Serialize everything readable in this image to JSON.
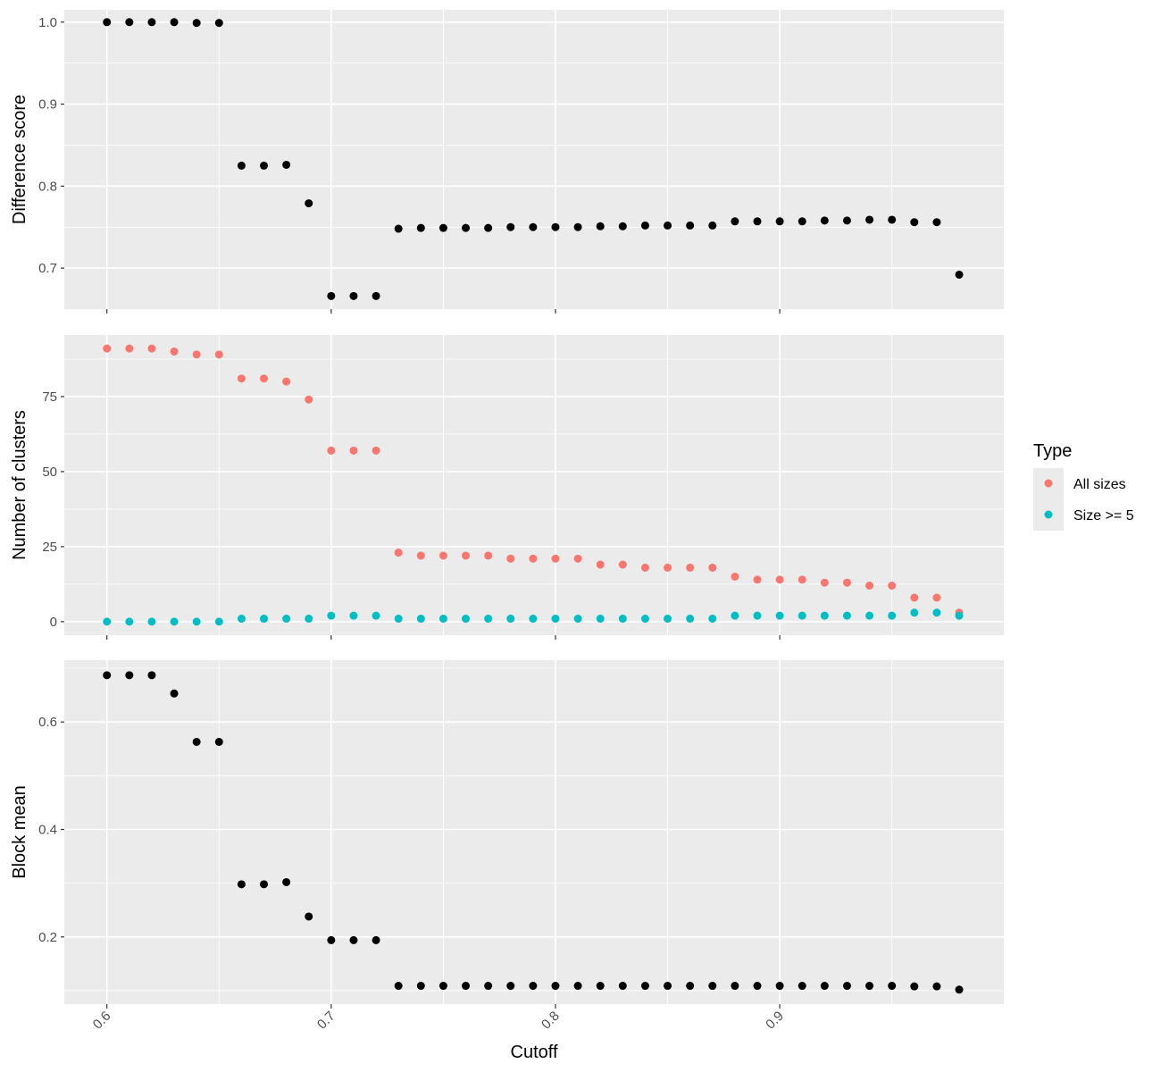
{
  "chart_data": [
    {
      "type": "scatter",
      "ylabel": "Difference score",
      "ylim": [
        0.65,
        1.015
      ],
      "yticks": [
        0.7,
        0.8,
        0.9,
        1.0
      ],
      "ytick_labels": [
        "0.7",
        "0.8",
        "0.9",
        "1.0"
      ],
      "series": [
        {
          "color": "#000000",
          "x": [
            0.6,
            0.61,
            0.62,
            0.63,
            0.64,
            0.65,
            0.66,
            0.67,
            0.68,
            0.69,
            0.7,
            0.71,
            0.72,
            0.73,
            0.74,
            0.75,
            0.76,
            0.77,
            0.78,
            0.79,
            0.8,
            0.81,
            0.82,
            0.83,
            0.84,
            0.85,
            0.86,
            0.87,
            0.88,
            0.89,
            0.9,
            0.91,
            0.92,
            0.93,
            0.94,
            0.95,
            0.96,
            0.97,
            0.98
          ],
          "y": [
            1.0,
            1.0,
            1.0,
            1.0,
            0.999,
            0.999,
            0.825,
            0.825,
            0.826,
            0.779,
            0.666,
            0.666,
            0.666,
            0.748,
            0.749,
            0.749,
            0.749,
            0.749,
            0.75,
            0.75,
            0.75,
            0.75,
            0.751,
            0.751,
            0.752,
            0.752,
            0.752,
            0.752,
            0.757,
            0.757,
            0.757,
            0.757,
            0.758,
            0.758,
            0.759,
            0.759,
            0.756,
            0.756,
            0.692
          ]
        }
      ]
    },
    {
      "type": "scatter",
      "ylabel": "Number of clusters",
      "ylim": [
        -4.5,
        95.5
      ],
      "yticks": [
        0,
        25,
        50,
        75
      ],
      "ytick_labels": [
        "0",
        "25",
        "50",
        "75"
      ],
      "legend": {
        "title": "Type",
        "position": "right"
      },
      "series": [
        {
          "name": "All sizes",
          "color": "#F8766D",
          "x": [
            0.6,
            0.61,
            0.62,
            0.63,
            0.64,
            0.65,
            0.66,
            0.67,
            0.68,
            0.69,
            0.7,
            0.71,
            0.72,
            0.73,
            0.74,
            0.75,
            0.76,
            0.77,
            0.78,
            0.79,
            0.8,
            0.81,
            0.82,
            0.83,
            0.84,
            0.85,
            0.86,
            0.87,
            0.88,
            0.89,
            0.9,
            0.91,
            0.92,
            0.93,
            0.94,
            0.95,
            0.96,
            0.97,
            0.98
          ],
          "y": [
            91,
            91,
            91,
            90,
            89,
            89,
            81,
            81,
            80,
            74,
            57,
            57,
            57,
            23,
            22,
            22,
            22,
            22,
            21,
            21,
            21,
            21,
            19,
            19,
            18,
            18,
            18,
            18,
            15,
            14,
            14,
            14,
            13,
            13,
            12,
            12,
            8,
            8,
            3
          ]
        },
        {
          "name": "Size >= 5",
          "color": "#00BFC4",
          "x": [
            0.6,
            0.61,
            0.62,
            0.63,
            0.64,
            0.65,
            0.66,
            0.67,
            0.68,
            0.69,
            0.7,
            0.71,
            0.72,
            0.73,
            0.74,
            0.75,
            0.76,
            0.77,
            0.78,
            0.79,
            0.8,
            0.81,
            0.82,
            0.83,
            0.84,
            0.85,
            0.86,
            0.87,
            0.88,
            0.89,
            0.9,
            0.91,
            0.92,
            0.93,
            0.94,
            0.95,
            0.96,
            0.97,
            0.98
          ],
          "y": [
            0,
            0,
            0,
            0,
            0,
            0,
            1,
            1,
            1,
            1,
            2,
            2,
            2,
            1,
            1,
            1,
            1,
            1,
            1,
            1,
            1,
            1,
            1,
            1,
            1,
            1,
            1,
            1,
            2,
            2,
            2,
            2,
            2,
            2,
            2,
            2,
            3,
            3,
            2
          ]
        }
      ]
    },
    {
      "type": "scatter",
      "xlabel": "Cutoff",
      "ylabel": "Block mean",
      "ylim": [
        0.075,
        0.715
      ],
      "yticks": [
        0.2,
        0.4,
        0.6
      ],
      "ytick_labels": [
        "0.2",
        "0.4",
        "0.6"
      ],
      "series": [
        {
          "color": "#000000",
          "x": [
            0.6,
            0.61,
            0.62,
            0.63,
            0.64,
            0.65,
            0.66,
            0.67,
            0.68,
            0.69,
            0.7,
            0.71,
            0.72,
            0.73,
            0.74,
            0.75,
            0.76,
            0.77,
            0.78,
            0.79,
            0.8,
            0.81,
            0.82,
            0.83,
            0.84,
            0.85,
            0.86,
            0.87,
            0.88,
            0.89,
            0.9,
            0.91,
            0.92,
            0.93,
            0.94,
            0.95,
            0.96,
            0.97,
            0.98
          ],
          "y": [
            0.687,
            0.687,
            0.687,
            0.653,
            0.563,
            0.563,
            0.298,
            0.298,
            0.302,
            0.238,
            0.194,
            0.194,
            0.194,
            0.109,
            0.109,
            0.109,
            0.109,
            0.109,
            0.109,
            0.109,
            0.109,
            0.109,
            0.109,
            0.109,
            0.109,
            0.109,
            0.109,
            0.109,
            0.109,
            0.109,
            0.109,
            0.109,
            0.109,
            0.109,
            0.109,
            0.109,
            0.108,
            0.108,
            0.102
          ]
        }
      ]
    }
  ],
  "x_axis": {
    "ticks": [
      0.6,
      0.7,
      0.8,
      0.9
    ],
    "tick_labels": [
      "0.6",
      "0.7",
      "0.8",
      "0.9"
    ],
    "xlim": [
      0.581,
      0.9999
    ]
  },
  "theme": {
    "panel_background": "#EBEBEB",
    "grid_color": "#FFFFFF",
    "grid": true
  }
}
